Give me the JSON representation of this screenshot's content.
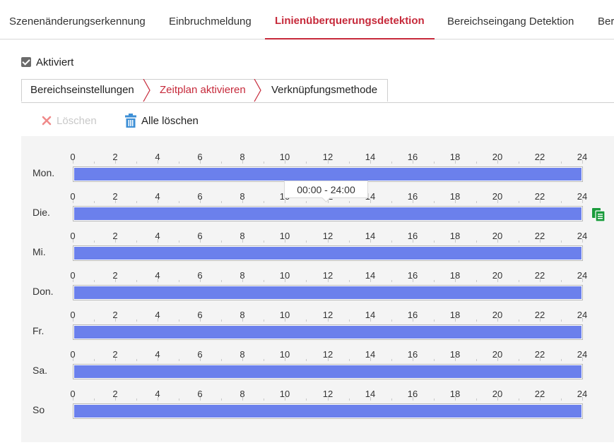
{
  "top_tabs": [
    {
      "label": "Szenenänderungserkennung",
      "active": false
    },
    {
      "label": "Einbruchmeldung",
      "active": false
    },
    {
      "label": "Linienüberquerungsdetektion",
      "active": true
    },
    {
      "label": "Bereichseingang Detektion",
      "active": false
    },
    {
      "label": "Ber",
      "active": false
    }
  ],
  "enable": {
    "label": "Aktiviert",
    "checked": true
  },
  "sub_tabs": [
    {
      "label": "Bereichseinstellungen",
      "active": false
    },
    {
      "label": "Zeitplan aktivieren",
      "active": true
    },
    {
      "label": "Verknüpfungsmethode",
      "active": false
    }
  ],
  "toolbar": {
    "delete_label": "Löschen",
    "delete_icon": "x-icon",
    "delete_all_label": "Alle löschen",
    "delete_all_icon": "trash-icon"
  },
  "schedule": {
    "hour_labels": [
      "0",
      "2",
      "4",
      "6",
      "8",
      "10",
      "12",
      "14",
      "16",
      "18",
      "20",
      "22",
      "24"
    ],
    "days": [
      {
        "label": "Mon.",
        "start_hour": 0,
        "end_hour": 24
      },
      {
        "label": "Die.",
        "start_hour": 0,
        "end_hour": 24
      },
      {
        "label": "Mi.",
        "start_hour": 0,
        "end_hour": 24
      },
      {
        "label": "Don.",
        "start_hour": 0,
        "end_hour": 24
      },
      {
        "label": "Fr.",
        "start_hour": 0,
        "end_hour": 24
      },
      {
        "label": "Sa.",
        "start_hour": 0,
        "end_hour": 24
      },
      {
        "label": "So",
        "start_hour": 0,
        "end_hour": 24
      }
    ],
    "tooltip": "00:00 - 24:00",
    "copy_icon": "copy-icon"
  },
  "colors": {
    "accent": "#c6293a",
    "bar_fill": "#6b80ec",
    "copy_icon": "#1a9b3c",
    "trash_icon": "#3d8fd6",
    "delete_icon": "#f08a8a"
  }
}
